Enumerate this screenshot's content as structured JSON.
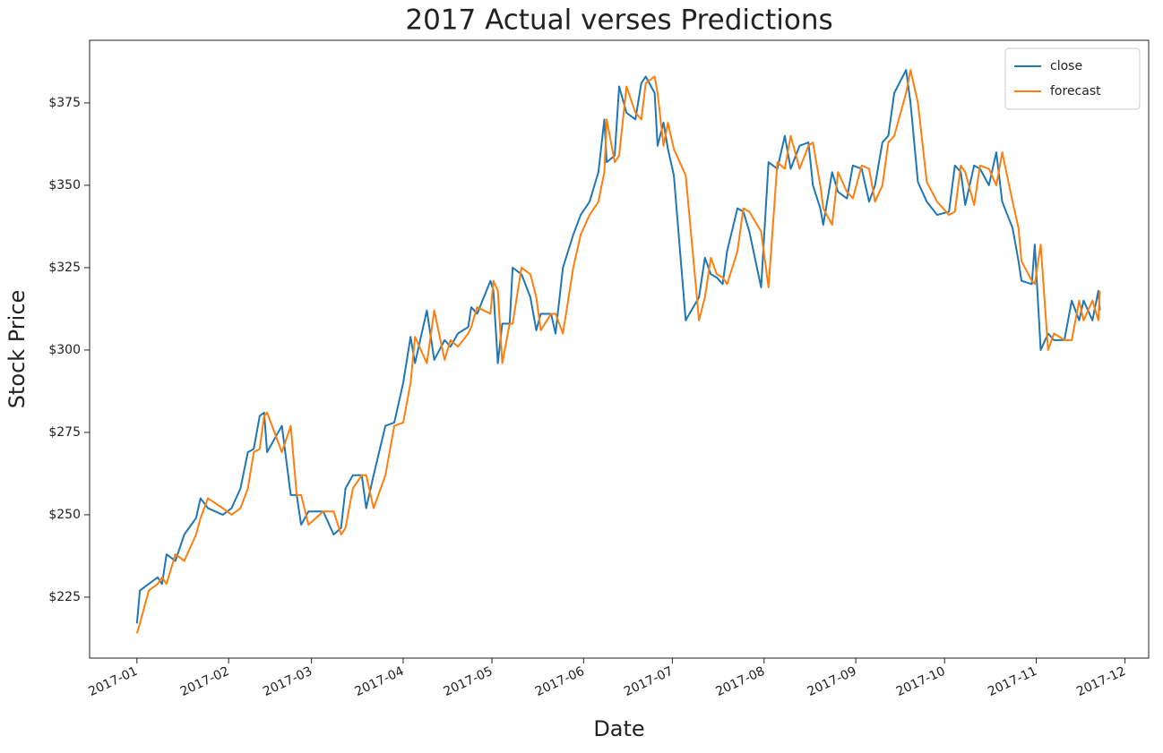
{
  "chart_data": {
    "type": "line",
    "title": "2017 Actual verses Predictions",
    "x_label": "Date",
    "y_label": "Stock Price",
    "legend": "upper right",
    "x": [
      0,
      1,
      4,
      7,
      8.5,
      10,
      13,
      16,
      20,
      21.5,
      24,
      29,
      32,
      35,
      37.5,
      39.5,
      41.5,
      43,
      44,
      49,
      52,
      54,
      55.5,
      58,
      63,
      66.5,
      69,
      70.5,
      73,
      76,
      77.5,
      80,
      84,
      87,
      90,
      92.5,
      94,
      98,
      100.5,
      104,
      106,
      108.5,
      112,
      113,
      115,
      119.5,
      120.5,
      122,
      123.5,
      126,
      127,
      130,
      133,
      135,
      136.5,
      140,
      141.5,
      144,
      147.5,
      150,
      153,
      156,
      158,
      158.8,
      161.5,
      163,
      165.5,
      168.5,
      170.5,
      172,
      175,
      176,
      178,
      179.5,
      181.5,
      185.5,
      190,
      192,
      194,
      196,
      198,
      199.5,
      203,
      205,
      207,
      211,
      213.5,
      216.5,
      219,
      221,
      224,
      227,
      228.5,
      231,
      232,
      235,
      237,
      240,
      242,
      245,
      247.5,
      249.5,
      252,
      254,
      256,
      260,
      261.5,
      264,
      267,
      270.5,
      274.5,
      276.5,
      278.5,
      280,
      283,
      285,
      288,
      290.5,
      292.5,
      296,
      298,
      299,
      302.5,
      303.5,
      305.5,
      308,
      310,
      313.5,
      316,
      318.5,
      320,
      323,
      325,
      325.5
    ],
    "series": [
      {
        "name": "close",
        "color": "#1f77b4",
        "values": [
          217,
          227,
          229,
          231,
          229,
          238,
          236,
          244,
          249,
          255,
          252,
          250,
          252,
          258,
          269,
          270,
          280,
          281,
          269,
          277,
          256,
          256,
          247,
          251,
          251,
          244,
          246,
          258,
          262,
          262,
          252,
          262,
          277,
          278,
          290,
          304,
          296,
          312,
          297,
          303,
          301,
          305,
          307,
          313,
          311,
          321,
          318,
          296,
          308,
          308,
          325,
          323,
          316,
          306,
          311,
          311,
          305,
          325,
          335,
          341,
          345,
          354,
          370,
          357,
          359,
          380,
          372,
          370,
          381,
          383,
          378,
          362,
          369,
          361,
          353,
          309,
          316,
          328,
          323,
          322,
          320,
          330,
          343,
          342,
          336,
          319,
          357,
          355,
          365,
          355,
          362,
          363,
          350,
          343,
          338,
          354,
          348,
          346,
          356,
          355,
          345,
          350,
          363,
          365,
          378,
          385,
          375,
          351,
          345,
          341,
          342,
          356,
          354,
          344,
          356,
          355,
          350,
          360,
          345,
          337,
          327,
          321,
          320,
          332,
          300,
          305,
          303,
          303,
          315,
          309,
          315,
          309,
          318,
          312
        ]
      },
      {
        "name": "forecast",
        "color": "#ff7f0e",
        "values": [
          214,
          217,
          227,
          229,
          231,
          229,
          238,
          236,
          244,
          249,
          255,
          252,
          250,
          252,
          258,
          269,
          270,
          280,
          281,
          269,
          277,
          256,
          256,
          247,
          251,
          251,
          244,
          246,
          258,
          262,
          262,
          252,
          262,
          277,
          278,
          290,
          304,
          296,
          312,
          297,
          303,
          301,
          305,
          307,
          313,
          311,
          321,
          318,
          296,
          308,
          308,
          325,
          323,
          316,
          306,
          311,
          311,
          305,
          325,
          335,
          341,
          345,
          354,
          370,
          357,
          359,
          380,
          372,
          370,
          381,
          383,
          378,
          362,
          369,
          361,
          353,
          309,
          316,
          328,
          323,
          322,
          320,
          330,
          343,
          342,
          336,
          319,
          357,
          355,
          365,
          355,
          362,
          363,
          350,
          343,
          338,
          354,
          348,
          346,
          356,
          355,
          345,
          350,
          363,
          365,
          378,
          385,
          375,
          351,
          345,
          341,
          342,
          356,
          354,
          344,
          356,
          355,
          350,
          360,
          345,
          337,
          327,
          321,
          320,
          332,
          300,
          305,
          303,
          303,
          315,
          309,
          315,
          309,
          318
        ]
      }
    ],
    "xlim": [
      -16,
      342
    ],
    "xticks": [
      {
        "value": 0,
        "label": "2017-01"
      },
      {
        "value": 31,
        "label": "2017-02"
      },
      {
        "value": 59,
        "label": "2017-03"
      },
      {
        "value": 90,
        "label": "2017-04"
      },
      {
        "value": 120,
        "label": "2017-05"
      },
      {
        "value": 151,
        "label": "2017-06"
      },
      {
        "value": 181,
        "label": "2017-07"
      },
      {
        "value": 212,
        "label": "2017-08"
      },
      {
        "value": 243,
        "label": "2017-09"
      },
      {
        "value": 273,
        "label": "2017-10"
      },
      {
        "value": 304,
        "label": "2017-11"
      },
      {
        "value": 334,
        "label": "2017-12"
      }
    ],
    "ylim": [
      206.5,
      394
    ],
    "yticks": [
      {
        "value": 225,
        "label": "$225"
      },
      {
        "value": 250,
        "label": "$250"
      },
      {
        "value": 275,
        "label": "$275"
      },
      {
        "value": 300,
        "label": "$300"
      },
      {
        "value": 325,
        "label": "$325"
      },
      {
        "value": 350,
        "label": "$350"
      },
      {
        "value": 375,
        "label": "$375"
      }
    ]
  }
}
